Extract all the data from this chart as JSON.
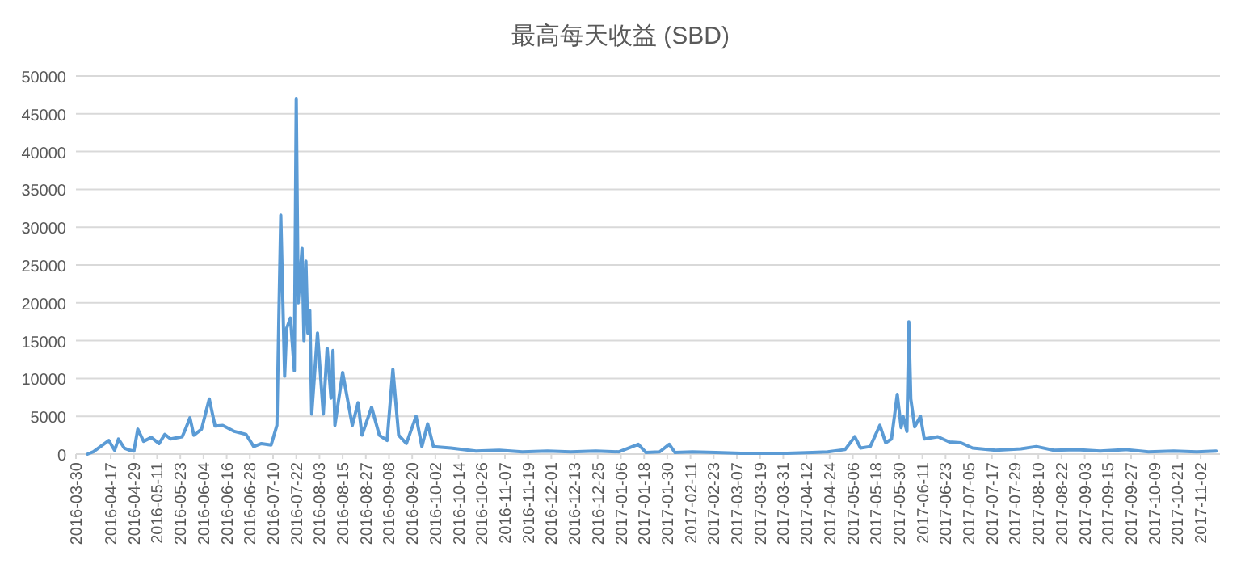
{
  "chart_data": {
    "type": "line",
    "title": "最高每天收益 (SBD)",
    "x": [
      "2016-04-05",
      "2016-04-08",
      "2016-04-16",
      "2016-04-19",
      "2016-04-21",
      "2016-04-24",
      "2016-04-27",
      "2016-04-29",
      "2016-05-01",
      "2016-05-04",
      "2016-05-08",
      "2016-05-12",
      "2016-05-15",
      "2016-05-18",
      "2016-05-24",
      "2016-05-26",
      "2016-05-28",
      "2016-05-30",
      "2016-06-03",
      "2016-06-07",
      "2016-06-10",
      "2016-06-14",
      "2016-06-20",
      "2016-06-26",
      "2016-06-30",
      "2016-07-04",
      "2016-07-09",
      "2016-07-12",
      "2016-07-13",
      "2016-07-14",
      "2016-07-16",
      "2016-07-17",
      "2016-07-19",
      "2016-07-21",
      "2016-07-22",
      "2016-07-23",
      "2016-07-25",
      "2016-07-26",
      "2016-07-27",
      "2016-07-28",
      "2016-07-29",
      "2016-07-30",
      "2016-08-02",
      "2016-08-05",
      "2016-08-07",
      "2016-08-09",
      "2016-08-10",
      "2016-08-11",
      "2016-08-15",
      "2016-08-17",
      "2016-08-20",
      "2016-08-23",
      "2016-08-25",
      "2016-08-30",
      "2016-09-03",
      "2016-09-07",
      "2016-09-10",
      "2016-09-13",
      "2016-09-17",
      "2016-09-22",
      "2016-09-25",
      "2016-09-28",
      "2016-10-01",
      "2016-10-10",
      "2016-10-23",
      "2016-11-04",
      "2016-11-16",
      "2016-11-29",
      "2016-12-11",
      "2016-12-24",
      "2017-01-05",
      "2017-01-15",
      "2017-01-19",
      "2017-01-26",
      "2017-01-31",
      "2017-02-03",
      "2017-02-12",
      "2017-02-24",
      "2017-03-09",
      "2017-03-21",
      "2017-04-02",
      "2017-04-15",
      "2017-04-23",
      "2017-05-02",
      "2017-05-07",
      "2017-05-10",
      "2017-05-15",
      "2017-05-20",
      "2017-05-23",
      "2017-05-26",
      "2017-05-29",
      "2017-05-31",
      "2017-06-01",
      "2017-06-03",
      "2017-06-04",
      "2017-06-05",
      "2017-06-07",
      "2017-06-10",
      "2017-06-12",
      "2017-06-19",
      "2017-06-25",
      "2017-07-01",
      "2017-07-07",
      "2017-07-19",
      "2017-08-01",
      "2017-08-09",
      "2017-08-18",
      "2017-08-30",
      "2017-09-11",
      "2017-09-24",
      "2017-10-06",
      "2017-10-19",
      "2017-10-31",
      "2017-11-10"
    ],
    "series": [
      {
        "color": "#5b9bd5",
        "values": [
          0,
          300,
          1800,
          500,
          2000,
          800,
          500,
          400,
          3300,
          1700,
          2200,
          1400,
          2600,
          2000,
          2300,
          3500,
          4800,
          2500,
          3300,
          7300,
          3700,
          3800,
          3000,
          2600,
          1000,
          1400,
          1200,
          3800,
          18000,
          31600,
          10300,
          16600,
          18000,
          11000,
          47000,
          20000,
          27200,
          15000,
          25500,
          16000,
          19000,
          5300,
          16000,
          5300,
          14000,
          7400,
          13700,
          3800,
          10800,
          8000,
          3800,
          6800,
          2500,
          6200,
          2500,
          1800,
          11200,
          2500,
          1400,
          5000,
          1000,
          4000,
          1000,
          800,
          400,
          500,
          300,
          400,
          300,
          400,
          300,
          1300,
          200,
          300,
          1300,
          200,
          300,
          200,
          100,
          100,
          100,
          200,
          300,
          600,
          2300,
          800,
          1000,
          3800,
          1500,
          2000,
          7900,
          3500,
          5000,
          3000,
          17500,
          7300,
          3600,
          5000,
          2000,
          2300,
          1600,
          1500,
          800,
          500,
          700,
          1000,
          500,
          600,
          400,
          600,
          300,
          400,
          300,
          400
        ]
      }
    ],
    "xlim": [
      "2016-03-30",
      "2017-11-12"
    ],
    "xticks": [
      "2016-03-30",
      "2016-04-17",
      "2016-04-29",
      "2016-05-11",
      "2016-05-23",
      "2016-06-04",
      "2016-06-16",
      "2016-06-28",
      "2016-07-10",
      "2016-07-22",
      "2016-08-03",
      "2016-08-15",
      "2016-08-27",
      "2016-09-08",
      "2016-09-20",
      "2016-10-02",
      "2016-10-14",
      "2016-10-26",
      "2016-11-07",
      "2016-11-19",
      "2016-12-01",
      "2016-12-13",
      "2016-12-25",
      "2017-01-06",
      "2017-01-18",
      "2017-01-30",
      "2017-02-11",
      "2017-02-23",
      "2017-03-07",
      "2017-03-19",
      "2017-03-31",
      "2017-04-12",
      "2017-04-24",
      "2017-05-06",
      "2017-05-18",
      "2017-05-30",
      "2017-06-11",
      "2017-06-23",
      "2017-07-05",
      "2017-07-17",
      "2017-07-29",
      "2017-08-10",
      "2017-08-22",
      "2017-09-03",
      "2017-09-15",
      "2017-09-27",
      "2017-10-09",
      "2017-10-21",
      "2017-11-02"
    ],
    "ylim": [
      0,
      50000
    ],
    "yticks": [
      0,
      5000,
      10000,
      15000,
      20000,
      25000,
      30000,
      35000,
      40000,
      45000,
      50000
    ],
    "grid": "y",
    "marker": "none",
    "line_style": "solid"
  }
}
